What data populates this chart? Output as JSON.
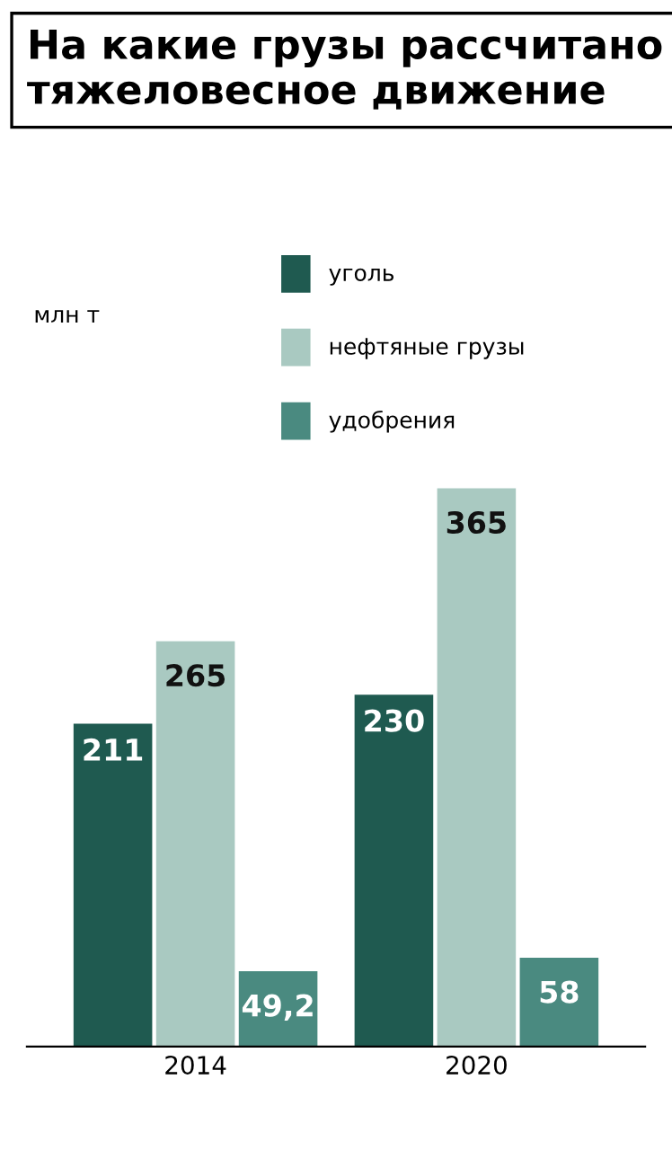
{
  "chart_data": {
    "type": "bar",
    "title": "На какие грузы рассчитано тяжеловесное движение",
    "annotations": [
      "млн т"
    ],
    "categories": [
      "2014",
      "2020"
    ],
    "series": [
      {
        "name": "уголь",
        "color": "#1f5a50",
        "values": [
          211,
          230
        ],
        "value_labels": [
          "211",
          "230"
        ]
      },
      {
        "name": "нефтяные грузы",
        "color": "#a9c9c1",
        "values": [
          265,
          365
        ],
        "value_labels": [
          "265",
          "365"
        ]
      },
      {
        "name": "удобрения",
        "color": "#4a8a80",
        "values": [
          49.2,
          58
        ],
        "value_labels": [
          "49,2",
          "58"
        ]
      }
    ],
    "legend": "top",
    "grid": false,
    "tick_labels": "x"
  }
}
